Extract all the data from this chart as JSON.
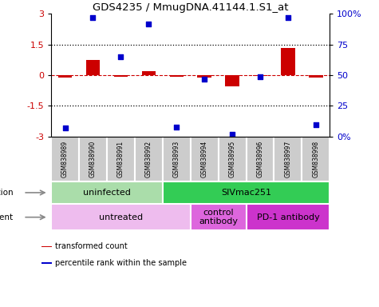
{
  "title": "GDS4235 / MmugDNA.41144.1.S1_at",
  "samples": [
    "GSM838989",
    "GSM838990",
    "GSM838991",
    "GSM838992",
    "GSM838993",
    "GSM838994",
    "GSM838995",
    "GSM838996",
    "GSM838997",
    "GSM838998"
  ],
  "transformed_count": [
    -0.12,
    0.75,
    -0.08,
    0.18,
    -0.08,
    -0.12,
    -0.55,
    -0.05,
    1.35,
    -0.12
  ],
  "percentile_rank": [
    7,
    97,
    65,
    92,
    8,
    47,
    2,
    49,
    97,
    10
  ],
  "ylim": [
    -3,
    3
  ],
  "yticks_left": [
    -3,
    -1.5,
    0,
    1.5,
    3
  ],
  "hlines": [
    1.5,
    -1.5
  ],
  "bar_color": "#cc0000",
  "dot_color": "#0000cc",
  "sample_box_color": "#cccccc",
  "infection_groups": [
    {
      "label": "uninfected",
      "start": 0,
      "end": 4,
      "color": "#aaddaa"
    },
    {
      "label": "SIVmac251",
      "start": 4,
      "end": 10,
      "color": "#33cc55"
    }
  ],
  "agent_groups": [
    {
      "label": "untreated",
      "start": 0,
      "end": 5,
      "color": "#eebcee"
    },
    {
      "label": "control\nantibody",
      "start": 5,
      "end": 7,
      "color": "#dd66dd"
    },
    {
      "label": "PD-1 antibody",
      "start": 7,
      "end": 10,
      "color": "#cc33cc"
    }
  ],
  "legend_items": [
    {
      "label": "transformed count",
      "color": "#cc0000"
    },
    {
      "label": "percentile rank within the sample",
      "color": "#0000cc"
    }
  ]
}
